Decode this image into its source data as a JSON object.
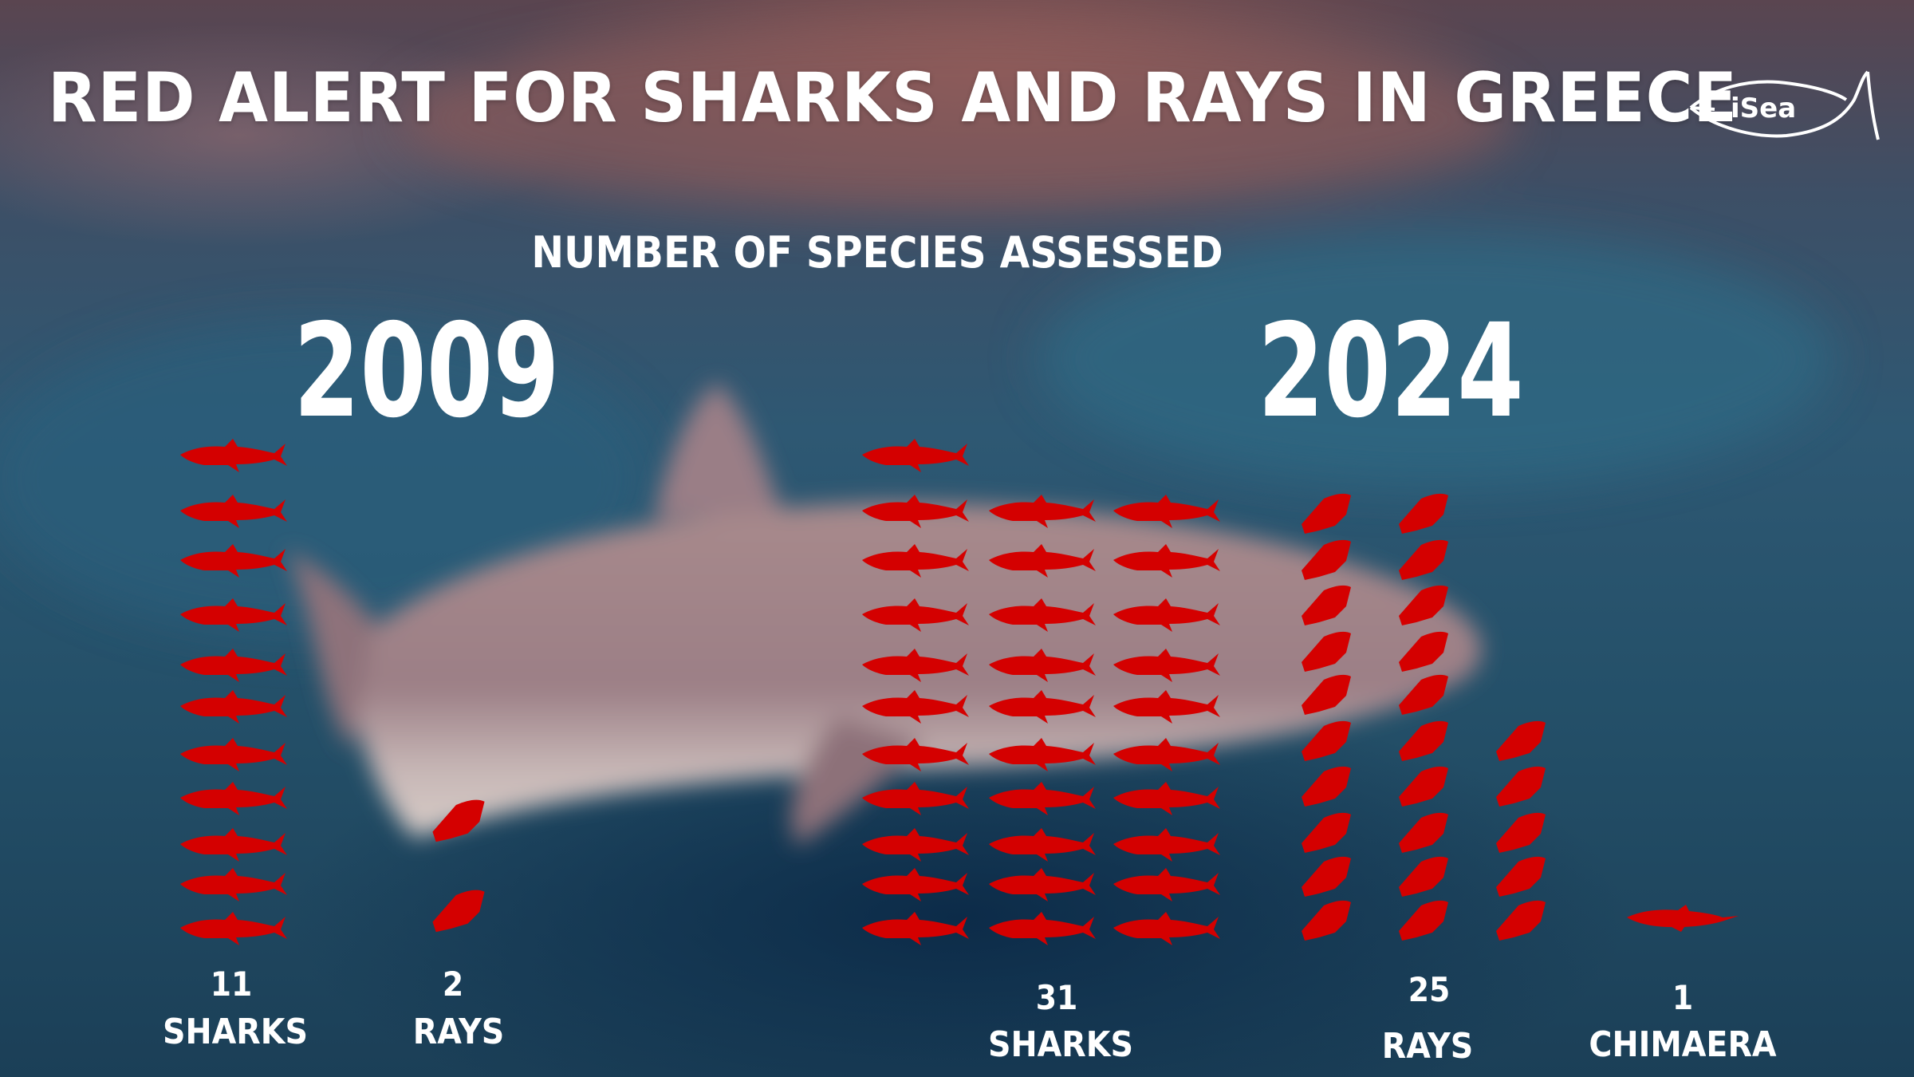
{
  "title": "RED ALERT FOR SHARKS AND RAYS IN GREECE",
  "logo_text": "iSea",
  "colors": {
    "icon": "#d40000",
    "text": "#ffffff"
  },
  "chart_data": {
    "type": "pictogram",
    "title": "NUMBER OF SPECIES ASSESSED",
    "groups": [
      {
        "year": "2009",
        "items": [
          {
            "category": "SHARKS",
            "count": 11,
            "count_label": "11",
            "icon": "shark-icon"
          },
          {
            "category": "RAYS",
            "count": 2,
            "count_label": "2",
            "icon": "ray-icon"
          }
        ]
      },
      {
        "year": "2024",
        "items": [
          {
            "category": "SHARKS",
            "count": 31,
            "count_label": "31",
            "icon": "shark-icon"
          },
          {
            "category": "RAYS",
            "count": 25,
            "count_label": "25",
            "icon": "ray-icon"
          },
          {
            "category": "CHIMAERA",
            "count": 1,
            "count_label": "1",
            "icon": "chimaera-icon"
          }
        ]
      }
    ]
  }
}
